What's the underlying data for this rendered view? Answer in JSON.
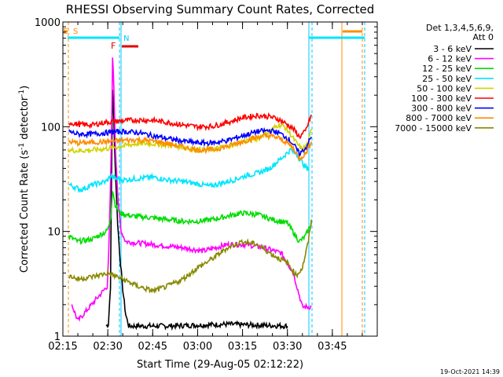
{
  "chart_data": {
    "type": "line",
    "title": "RHESSI Observing Summary Count Rates, Corrected",
    "xlabel": "Start Time (29-Aug-05 02:12:22)",
    "ylabel_main": "Corrected Count Rate (s",
    "ylabel_sup1": "-1",
    "ylabel_mid": " detector",
    "ylabel_sup2": "-1",
    "ylabel_end": ")",
    "y_scale": "log",
    "ylim": [
      1,
      1000
    ],
    "xlim_min": [
      135,
      240
    ],
    "y_ticks": [
      {
        "v": 1,
        "label": "1"
      },
      {
        "v": 10,
        "label": "10"
      },
      {
        "v": 100,
        "label": "100"
      },
      {
        "v": 1000,
        "label": "1000"
      }
    ],
    "x_ticks": [
      {
        "v": 135,
        "label": "02:15"
      },
      {
        "v": 150,
        "label": "02:30"
      },
      {
        "v": 165,
        "label": "02:45"
      },
      {
        "v": 180,
        "label": "03:00"
      },
      {
        "v": 195,
        "label": "03:15"
      },
      {
        "v": 210,
        "label": "03:30"
      },
      {
        "v": 225,
        "label": "03:45"
      }
    ],
    "legend_header": [
      "Det 1,3,4,5,6,9,",
      "Att 0"
    ],
    "legend_placement": "right",
    "timestamp": "19-Oct-2021 14:39",
    "flags": [
      {
        "label": "E",
        "color": "#ff8c00"
      },
      {
        "label": "S",
        "color": "#ff8c00"
      },
      {
        "label": "N",
        "color": "#00c8ff"
      },
      {
        "label": "F",
        "color": "#e00000"
      }
    ],
    "series": [
      {
        "name": "3 - 6 keV",
        "color": "#000000",
        "points": [
          [
            149.5,
            1.25
          ],
          [
            150.2,
            1.3
          ],
          [
            150.9,
            3
          ],
          [
            151.3,
            45
          ],
          [
            151.6,
            230
          ],
          [
            152,
            120
          ],
          [
            152.5,
            40
          ],
          [
            153.3,
            12
          ],
          [
            154,
            6
          ],
          [
            155,
            2.8
          ],
          [
            156,
            1.6
          ],
          [
            157,
            1.25
          ],
          [
            170,
            1.25
          ],
          [
            190,
            1.3
          ],
          [
            210,
            1.25
          ]
        ]
      },
      {
        "name": "6 - 12 keV",
        "color": "#ff00ff",
        "points": [
          [
            138,
            2
          ],
          [
            140,
            1.4
          ],
          [
            149.8,
            3
          ],
          [
            150.3,
            6
          ],
          [
            150.8,
            20
          ],
          [
            151.3,
            100
          ],
          [
            151.6,
            480
          ],
          [
            152,
            250
          ],
          [
            152.6,
            60
          ],
          [
            153.5,
            18
          ],
          [
            154.5,
            10
          ],
          [
            156,
            8
          ],
          [
            165,
            7.5
          ],
          [
            175,
            7
          ],
          [
            182,
            6.5
          ],
          [
            186,
            7
          ],
          [
            190,
            7.5
          ],
          [
            196,
            7.5
          ],
          [
            202,
            7
          ],
          [
            208,
            6.2
          ],
          [
            212,
            4
          ],
          [
            215,
            1.9
          ],
          [
            218,
            1.9
          ]
        ]
      },
      {
        "name": "12 - 25 keV",
        "color": "#00dd00",
        "points": [
          [
            137,
            9
          ],
          [
            140,
            8
          ],
          [
            145,
            8.5
          ],
          [
            149.5,
            10
          ],
          [
            150.3,
            11
          ],
          [
            151,
            14
          ],
          [
            151.6,
            25
          ],
          [
            152.5,
            18
          ],
          [
            154,
            15
          ],
          [
            158,
            14
          ],
          [
            165,
            13.5
          ],
          [
            175,
            12.5
          ],
          [
            180,
            12.5
          ],
          [
            185,
            13
          ],
          [
            190,
            14
          ],
          [
            195,
            15
          ],
          [
            200,
            14.5
          ],
          [
            205,
            13
          ],
          [
            210,
            12
          ],
          [
            214,
            8
          ],
          [
            216,
            9
          ],
          [
            218,
            12
          ]
        ]
      },
      {
        "name": "25 - 50 keV",
        "color": "#00e5ff",
        "points": [
          [
            137,
            28
          ],
          [
            141,
            25
          ],
          [
            145,
            28
          ],
          [
            149.5,
            30
          ],
          [
            151,
            34
          ],
          [
            152.5,
            32
          ],
          [
            155,
            31
          ],
          [
            160,
            32
          ],
          [
            165,
            33
          ],
          [
            170,
            31
          ],
          [
            175,
            30
          ],
          [
            180,
            28.5
          ],
          [
            184,
            27
          ],
          [
            188,
            29
          ],
          [
            192,
            31
          ],
          [
            196,
            34
          ],
          [
            200,
            36
          ],
          [
            204,
            40
          ],
          [
            208,
            50
          ],
          [
            211,
            60
          ],
          [
            213,
            55
          ],
          [
            215,
            45
          ],
          [
            217,
            38
          ]
        ]
      },
      {
        "name": "50 - 100 keV",
        "color": "#d2d200",
        "points": [
          [
            137,
            60
          ],
          [
            140,
            59
          ],
          [
            145,
            60
          ],
          [
            150,
            62
          ],
          [
            153,
            64
          ],
          [
            157,
            67
          ],
          [
            160,
            69
          ],
          [
            165,
            69
          ],
          [
            170,
            67
          ],
          [
            175,
            64
          ],
          [
            180,
            60
          ],
          [
            185,
            61
          ],
          [
            190,
            65
          ],
          [
            195,
            72
          ],
          [
            200,
            78
          ],
          [
            204,
            90
          ],
          [
            207,
            105
          ],
          [
            209,
            100
          ],
          [
            211,
            85
          ],
          [
            213,
            70
          ],
          [
            215,
            60
          ],
          [
            217,
            70
          ],
          [
            218,
            95
          ]
        ]
      },
      {
        "name": "100 - 300 keV",
        "color": "#ff0000",
        "points": [
          [
            137,
            110
          ],
          [
            140,
            105
          ],
          [
            145,
            104
          ],
          [
            149,
            110
          ],
          [
            152,
            112
          ],
          [
            155,
            114
          ],
          [
            160,
            116
          ],
          [
            165,
            115
          ],
          [
            170,
            110
          ],
          [
            175,
            104
          ],
          [
            180,
            100
          ],
          [
            185,
            101
          ],
          [
            190,
            110
          ],
          [
            195,
            122
          ],
          [
            200,
            128
          ],
          [
            204,
            125
          ],
          [
            207,
            118
          ],
          [
            210,
            105
          ],
          [
            212,
            95
          ],
          [
            214,
            80
          ],
          [
            216,
            90
          ],
          [
            218,
            130
          ]
        ]
      },
      {
        "name": "300 - 800 keV",
        "color": "#0000ff",
        "points": [
          [
            137,
            90
          ],
          [
            140,
            85
          ],
          [
            145,
            85
          ],
          [
            150,
            88
          ],
          [
            155,
            90
          ],
          [
            160,
            88
          ],
          [
            165,
            82
          ],
          [
            170,
            77
          ],
          [
            175,
            73
          ],
          [
            180,
            70
          ],
          [
            185,
            70
          ],
          [
            190,
            74
          ],
          [
            195,
            82
          ],
          [
            200,
            90
          ],
          [
            204,
            92
          ],
          [
            207,
            88
          ],
          [
            210,
            78
          ],
          [
            212,
            68
          ],
          [
            214,
            55
          ],
          [
            216,
            62
          ],
          [
            218,
            80
          ]
        ]
      },
      {
        "name": "800 - 7000 keV",
        "color": "#ff8c00",
        "points": [
          [
            137,
            72
          ],
          [
            140,
            70
          ],
          [
            145,
            71
          ],
          [
            150,
            72
          ],
          [
            155,
            74
          ],
          [
            160,
            75
          ],
          [
            165,
            73
          ],
          [
            170,
            69
          ],
          [
            175,
            64
          ],
          [
            180,
            60
          ],
          [
            185,
            60
          ],
          [
            190,
            65
          ],
          [
            195,
            72
          ],
          [
            200,
            80
          ],
          [
            204,
            82
          ],
          [
            207,
            78
          ],
          [
            210,
            70
          ],
          [
            212,
            62
          ],
          [
            214,
            50
          ],
          [
            216,
            55
          ],
          [
            218,
            72
          ]
        ]
      },
      {
        "name": "7000 - 15000 keV",
        "color": "#888800",
        "points": [
          [
            137,
            3.8
          ],
          [
            140,
            3.5
          ],
          [
            145,
            3.7
          ],
          [
            150,
            4
          ],
          [
            155,
            3.5
          ],
          [
            160,
            3
          ],
          [
            165,
            2.7
          ],
          [
            170,
            3
          ],
          [
            175,
            3.5
          ],
          [
            180,
            4.5
          ],
          [
            185,
            5.5
          ],
          [
            190,
            7
          ],
          [
            195,
            8
          ],
          [
            200,
            7.5
          ],
          [
            205,
            6
          ],
          [
            210,
            5
          ],
          [
            213,
            3.8
          ],
          [
            215,
            4.5
          ],
          [
            217,
            8
          ],
          [
            218,
            13
          ]
        ]
      }
    ]
  }
}
